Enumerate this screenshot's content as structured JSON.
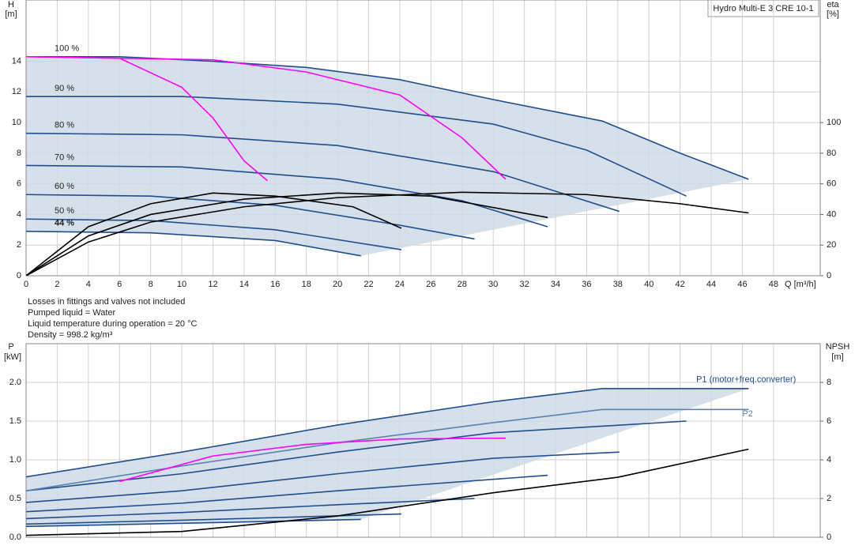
{
  "chart_data": [
    {
      "type": "line",
      "title": "Hydro Multi-E 3 CRE 10-1",
      "ylabel": "H",
      "yunit": "[m]",
      "y2label": "eta",
      "y2unit": "[%]",
      "xlabel": "Q [m³/h]",
      "xlim": [
        0,
        51
      ],
      "xticks": [
        0,
        2,
        4,
        6,
        8,
        10,
        12,
        14,
        16,
        18,
        20,
        22,
        24,
        26,
        28,
        30,
        32,
        34,
        36,
        38,
        40,
        42,
        44,
        46,
        48
      ],
      "ylim": [
        0,
        18
      ],
      "yticks": [
        0,
        2,
        4,
        6,
        8,
        10,
        12,
        14
      ],
      "y2lim": [
        0,
        180
      ],
      "y2ticks": [
        0,
        20,
        40,
        60,
        80,
        100
      ],
      "grid": true,
      "series": [
        {
          "label": "100 %",
          "color": "#1f4e8c",
          "x": [
            0,
            6,
            12,
            18,
            24,
            30,
            37,
            42,
            46.4
          ],
          "values": [
            14.3,
            14.3,
            14.0,
            13.6,
            12.8,
            11.5,
            10.1,
            8.0,
            6.3
          ]
        },
        {
          "label": "90 %",
          "color": "#1f4e8c",
          "x": [
            0,
            10,
            20,
            30,
            36,
            42.4
          ],
          "values": [
            11.7,
            11.7,
            11.2,
            9.9,
            8.2,
            5.2
          ]
        },
        {
          "label": "80 %",
          "color": "#1f4e8c",
          "x": [
            0,
            10,
            20,
            30,
            38.1
          ],
          "values": [
            9.3,
            9.2,
            8.5,
            6.8,
            4.2
          ]
        },
        {
          "label": "70 %",
          "color": "#1f4e8c",
          "x": [
            0,
            10,
            20,
            28,
            33.5
          ],
          "values": [
            7.2,
            7.1,
            6.3,
            4.9,
            3.2
          ]
        },
        {
          "label": "60 %",
          "color": "#1f4e8c",
          "x": [
            0,
            8,
            16,
            24,
            28.8
          ],
          "values": [
            5.3,
            5.2,
            4.6,
            3.3,
            2.4
          ]
        },
        {
          "label": "50 %",
          "color": "#1f4e8c",
          "x": [
            0,
            8,
            16,
            24.1
          ],
          "values": [
            3.7,
            3.6,
            3.0,
            1.7
          ]
        },
        {
          "label": "44 %",
          "color": "#1f4e8c",
          "x": [
            0,
            8,
            16,
            21.5
          ],
          "values": [
            2.9,
            2.8,
            2.3,
            1.3
          ]
        },
        {
          "color": "#ff00ff",
          "x": [
            0,
            6,
            10,
            12,
            14,
            15.5
          ],
          "values": [
            14.3,
            14.2,
            12.3,
            10.3,
            7.5,
            6.2
          ]
        },
        {
          "color": "#ff00ff",
          "x": [
            0,
            12,
            18,
            24,
            28,
            30.8
          ],
          "values": [
            14.3,
            14.1,
            13.3,
            11.8,
            9.0,
            6.3
          ]
        },
        {
          "color": "#000000",
          "axis": "y2",
          "x": [
            0,
            4,
            8,
            14,
            20,
            28,
            36,
            42,
            46.4
          ],
          "values": [
            0,
            22,
            35,
            45,
            51,
            54.5,
            53,
            47,
            41
          ]
        },
        {
          "color": "#000000",
          "axis": "y2",
          "x": [
            0,
            4,
            8,
            14,
            20,
            26,
            33.5
          ],
          "values": [
            0,
            26,
            40,
            50,
            54,
            52,
            38
          ]
        },
        {
          "color": "#000000",
          "axis": "y2",
          "x": [
            0,
            4,
            8,
            12,
            16,
            21,
            24.1
          ],
          "values": [
            0,
            32,
            47,
            54,
            52,
            45,
            31
          ]
        }
      ],
      "notes": [
        "Losses in fittings and valves not included",
        "Pumped liquid = Water",
        "Liquid temperature during operation = 20 °C",
        "Density = 998.2 kg/m³"
      ]
    },
    {
      "type": "line",
      "ylabel": "P",
      "yunit": "[kW]",
      "y2label": "NPSH",
      "y2unit": "[m]",
      "xlim": [
        0,
        51
      ],
      "ylim": [
        0,
        2.5
      ],
      "yticks": [
        {
          "value": 0,
          "label": "0.0"
        },
        0.5,
        {
          "value": 1,
          "label": "1.0"
        },
        1.5,
        {
          "value": 2,
          "label": "2.0"
        }
      ],
      "y2lim": [
        0,
        10
      ],
      "y2ticks": [
        0,
        2,
        4,
        6,
        8
      ],
      "grid": true,
      "series": [
        {
          "label": "P1 (motor+freq.converter)",
          "color": "#1f4e8c",
          "x": [
            0,
            10,
            20,
            30,
            37,
            46.4
          ],
          "values": [
            0.78,
            1.1,
            1.45,
            1.75,
            1.92,
            1.92
          ]
        },
        {
          "color": "#1f4e8c",
          "x": [
            0,
            10,
            20,
            30,
            42.4
          ],
          "values": [
            0.6,
            0.82,
            1.1,
            1.35,
            1.5
          ]
        },
        {
          "color": "#1f4e8c",
          "x": [
            0,
            10,
            20,
            30,
            38.1
          ],
          "values": [
            0.45,
            0.6,
            0.82,
            1.02,
            1.1
          ]
        },
        {
          "color": "#1f4e8c",
          "x": [
            0,
            10,
            20,
            33.5
          ],
          "values": [
            0.33,
            0.44,
            0.6,
            0.8
          ]
        },
        {
          "color": "#1f4e8c",
          "x": [
            0,
            10,
            20,
            28.8
          ],
          "values": [
            0.24,
            0.32,
            0.42,
            0.5
          ]
        },
        {
          "color": "#1f4e8c",
          "x": [
            0,
            10,
            24.1
          ],
          "values": [
            0.17,
            0.22,
            0.3
          ]
        },
        {
          "color": "#1f4e8c",
          "x": [
            0,
            10,
            21.5
          ],
          "values": [
            0.14,
            0.18,
            0.23
          ]
        },
        {
          "label": "P2",
          "color": "#5b82b0",
          "x": [
            0,
            10,
            20,
            30,
            37,
            46.4
          ],
          "values": [
            0.6,
            0.92,
            1.22,
            1.48,
            1.65,
            1.65
          ]
        },
        {
          "color": "#ff00ff",
          "x": [
            6,
            12,
            18,
            24,
            30.8
          ],
          "values": [
            0.72,
            1.05,
            1.2,
            1.27,
            1.28
          ]
        },
        {
          "color": "#000000",
          "axis": "y2",
          "x": [
            0,
            10,
            20,
            30,
            38,
            46.4
          ],
          "values": [
            0.1,
            0.3,
            1.1,
            2.3,
            3.1,
            4.55
          ]
        }
      ]
    }
  ]
}
